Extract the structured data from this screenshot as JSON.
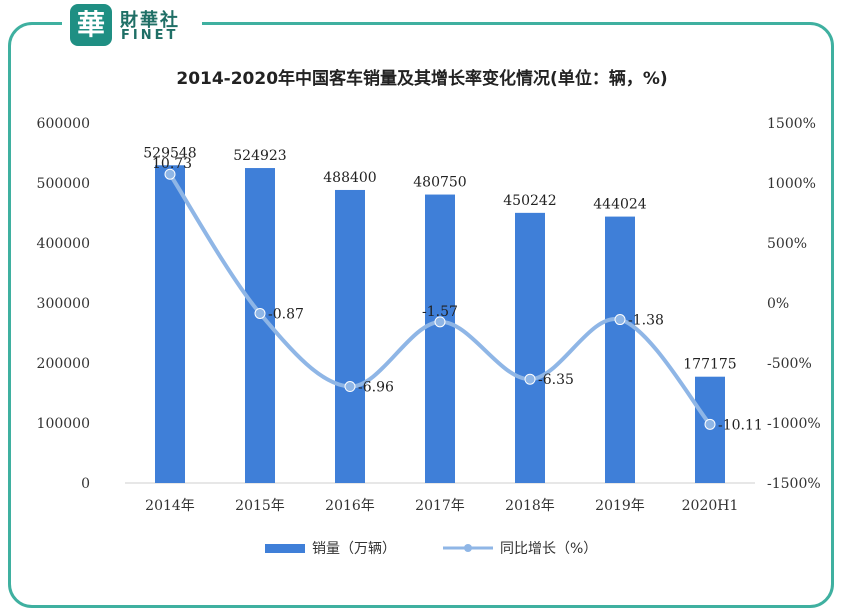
{
  "brand": {
    "seal_char": "華",
    "name_cn": "財華社",
    "name_en": "FINET",
    "accent": "#3fb0a0"
  },
  "chart_data": {
    "type": "bar+line",
    "title": "2014-2020年中国客车销量及其增长率变化情况(单位：辆，%)",
    "categories": [
      "2014年",
      "2015年",
      "2016年",
      "2017年",
      "2018年",
      "2019年",
      "2020H1"
    ],
    "series": [
      {
        "name": "销量（万辆）",
        "type": "bar",
        "axis": "left",
        "color": "#3f7fd8",
        "values": [
          529548,
          524923,
          488400,
          480750,
          450242,
          444024,
          177175
        ],
        "labels": [
          "529548",
          "524923",
          "488400",
          "480750",
          "450242",
          "444024",
          "177175"
        ]
      },
      {
        "name": "同比增长（%）",
        "type": "line",
        "axis": "right",
        "color": "#8fb6e6",
        "values": [
          1073,
          -87,
          -696,
          -157,
          -635,
          -138,
          -1011
        ],
        "labels": [
          "10.73",
          "-0.87",
          "-6.96",
          "-1.57",
          "-6.35",
          "-1.38",
          "-10.11"
        ]
      }
    ],
    "y_left": {
      "ylim": [
        0,
        600000
      ],
      "ticks": [
        "0",
        "100000",
        "200000",
        "300000",
        "400000",
        "500000",
        "600000"
      ]
    },
    "y_right": {
      "ylim": [
        -1500,
        1500
      ],
      "ticks": [
        "-1500%",
        "-1000%",
        "-500%",
        "0%",
        "500%",
        "1000%",
        "1500%"
      ]
    },
    "grid": false,
    "legend_position": "bottom"
  }
}
